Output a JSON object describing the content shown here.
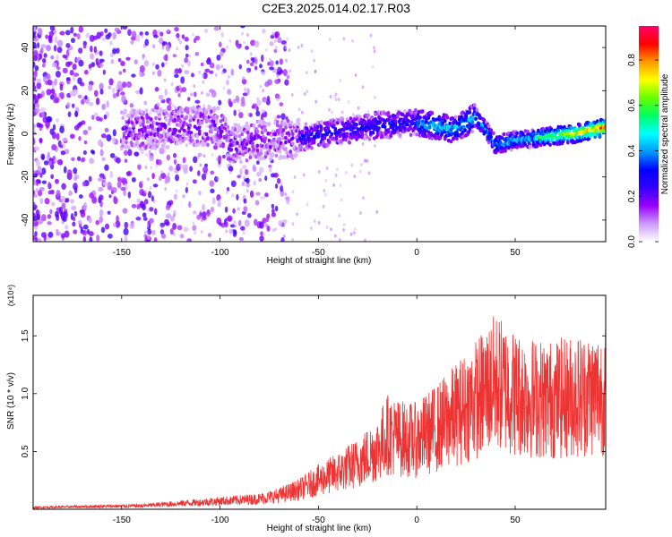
{
  "title": "C2E3.2025.014.02.17.R03",
  "chart_data": [
    {
      "type": "heatmap",
      "xlabel": "Height of straight line (km)",
      "ylabel": "Frequency (Hz)",
      "xlim": [
        -195,
        96
      ],
      "ylim": [
        -50,
        50
      ],
      "xticks": [
        -150,
        -100,
        -50,
        0,
        50
      ],
      "yticks": [
        -40,
        -20,
        0,
        20,
        40
      ],
      "colorbar": {
        "label": "Normalized spectral amplitude",
        "range": [
          0.0,
          0.95
        ],
        "ticks": [
          0.0,
          0.2,
          0.4,
          0.6,
          0.8
        ],
        "colors": [
          "#ffffff",
          "#cc99ff",
          "#9900ff",
          "#3300ff",
          "#0000ff",
          "#0099ff",
          "#00ffff",
          "#00ff66",
          "#66ff00",
          "#ffff00",
          "#ff9900",
          "#ff0000",
          "#ff0066"
        ]
      },
      "ridge_center": [
        {
          "x": -140,
          "y": 2
        },
        {
          "x": -120,
          "y": 3
        },
        {
          "x": -100,
          "y": 4
        },
        {
          "x": -95,
          "y": -5
        },
        {
          "x": -80,
          "y": -3
        },
        {
          "x": -60,
          "y": -2
        },
        {
          "x": -40,
          "y": 1
        },
        {
          "x": -20,
          "y": 4
        },
        {
          "x": 0,
          "y": 5
        },
        {
          "x": 20,
          "y": 2
        },
        {
          "x": 30,
          "y": 8
        },
        {
          "x": 35,
          "y": 2
        },
        {
          "x": 40,
          "y": -5
        },
        {
          "x": 50,
          "y": -3
        },
        {
          "x": 60,
          "y": -2
        },
        {
          "x": 70,
          "y": -1
        },
        {
          "x": 80,
          "y": 0
        },
        {
          "x": 95,
          "y": 3
        }
      ],
      "peak_amplitude_region_km": [
        60,
        96
      ]
    },
    {
      "type": "line",
      "xlabel": "Height of straight line (km)",
      "ylabel": "SNR (10 * v/v)",
      "scale_label": "(x10⁴)",
      "xlim": [
        -195,
        96
      ],
      "ylim": [
        0,
        1.85
      ],
      "xticks": [
        -150,
        -100,
        -50,
        0,
        50
      ],
      "yticks": [
        0.5,
        1.0,
        1.5
      ],
      "color": "#ee3333",
      "series": [
        {
          "x": [
            -195,
            -180,
            -160,
            -140,
            -130,
            -120,
            -110,
            -100,
            -90,
            -80,
            -70,
            -60,
            -50,
            -40,
            -30,
            -20,
            -15,
            -10,
            -5,
            0,
            10,
            20,
            30,
            40,
            50,
            60,
            70,
            80,
            90,
            96
          ],
          "values": [
            0.015,
            0.02,
            0.025,
            0.03,
            0.04,
            0.05,
            0.06,
            0.07,
            0.08,
            0.09,
            0.12,
            0.17,
            0.25,
            0.32,
            0.4,
            0.52,
            0.65,
            0.62,
            0.6,
            0.6,
            0.7,
            0.82,
            0.95,
            1.1,
            1.0,
            0.96,
            0.95,
            0.98,
            1.0,
            1.02
          ]
        }
      ]
    }
  ]
}
